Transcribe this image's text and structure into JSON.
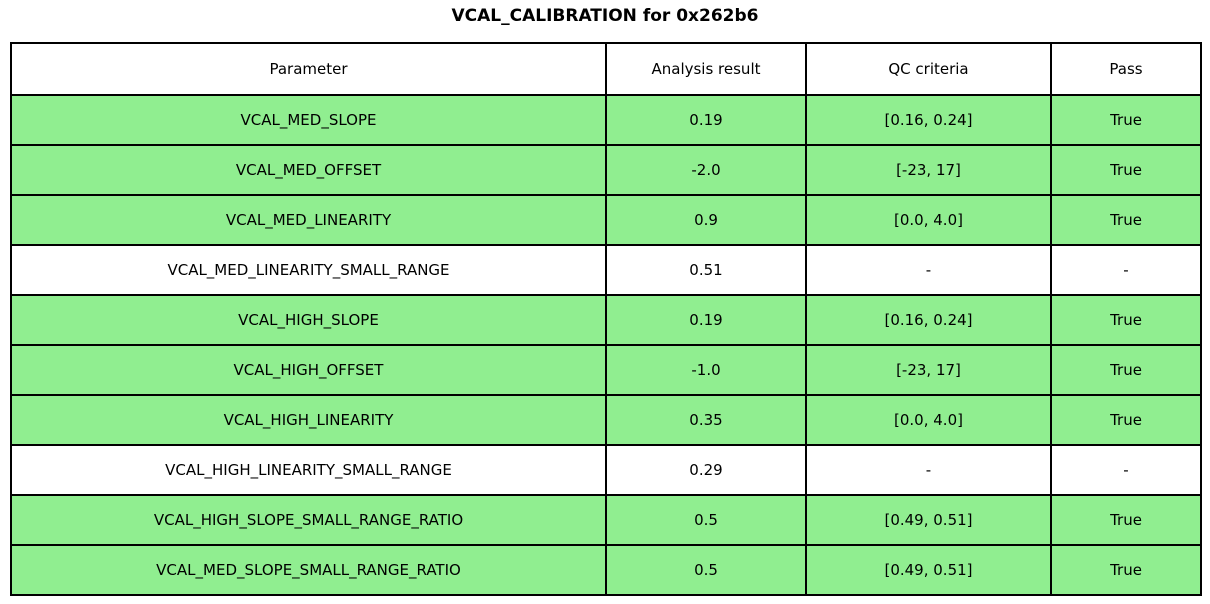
{
  "title": "VCAL_CALIBRATION for 0x262b6",
  "colors": {
    "pass_row_bg": "#90EE90",
    "neutral_row_bg": "#FFFFFF",
    "border": "#000000",
    "background": "#FFFFFF"
  },
  "chart_data": {
    "type": "table",
    "title": "VCAL_CALIBRATION for 0x262b6",
    "columns": [
      "Parameter",
      "Analysis result",
      "QC criteria",
      "Pass"
    ],
    "rows": [
      {
        "cells": [
          "VCAL_MED_SLOPE",
          "0.19",
          "[0.16, 0.24]",
          "True"
        ],
        "pass_highlight": true
      },
      {
        "cells": [
          "VCAL_MED_OFFSET",
          "-2.0",
          "[-23, 17]",
          "True"
        ],
        "pass_highlight": true
      },
      {
        "cells": [
          "VCAL_MED_LINEARITY",
          "0.9",
          "[0.0, 4.0]",
          "True"
        ],
        "pass_highlight": true
      },
      {
        "cells": [
          "VCAL_MED_LINEARITY_SMALL_RANGE",
          "0.51",
          "-",
          "-"
        ],
        "pass_highlight": false
      },
      {
        "cells": [
          "VCAL_HIGH_SLOPE",
          "0.19",
          "[0.16, 0.24]",
          "True"
        ],
        "pass_highlight": true
      },
      {
        "cells": [
          "VCAL_HIGH_OFFSET",
          "-1.0",
          "[-23, 17]",
          "True"
        ],
        "pass_highlight": true
      },
      {
        "cells": [
          "VCAL_HIGH_LINEARITY",
          "0.35",
          "[0.0, 4.0]",
          "True"
        ],
        "pass_highlight": true
      },
      {
        "cells": [
          "VCAL_HIGH_LINEARITY_SMALL_RANGE",
          "0.29",
          "-",
          "-"
        ],
        "pass_highlight": false
      },
      {
        "cells": [
          "VCAL_HIGH_SLOPE_SMALL_RANGE_RATIO",
          "0.5",
          "[0.49, 0.51]",
          "True"
        ],
        "pass_highlight": true
      },
      {
        "cells": [
          "VCAL_MED_SLOPE_SMALL_RANGE_RATIO",
          "0.5",
          "[0.49, 0.51]",
          "True"
        ],
        "pass_highlight": true
      }
    ],
    "layout": {
      "legend": "none",
      "grid": "cell-borders",
      "row_highlight_meaning": "green = QC pass, white = not evaluated"
    }
  }
}
